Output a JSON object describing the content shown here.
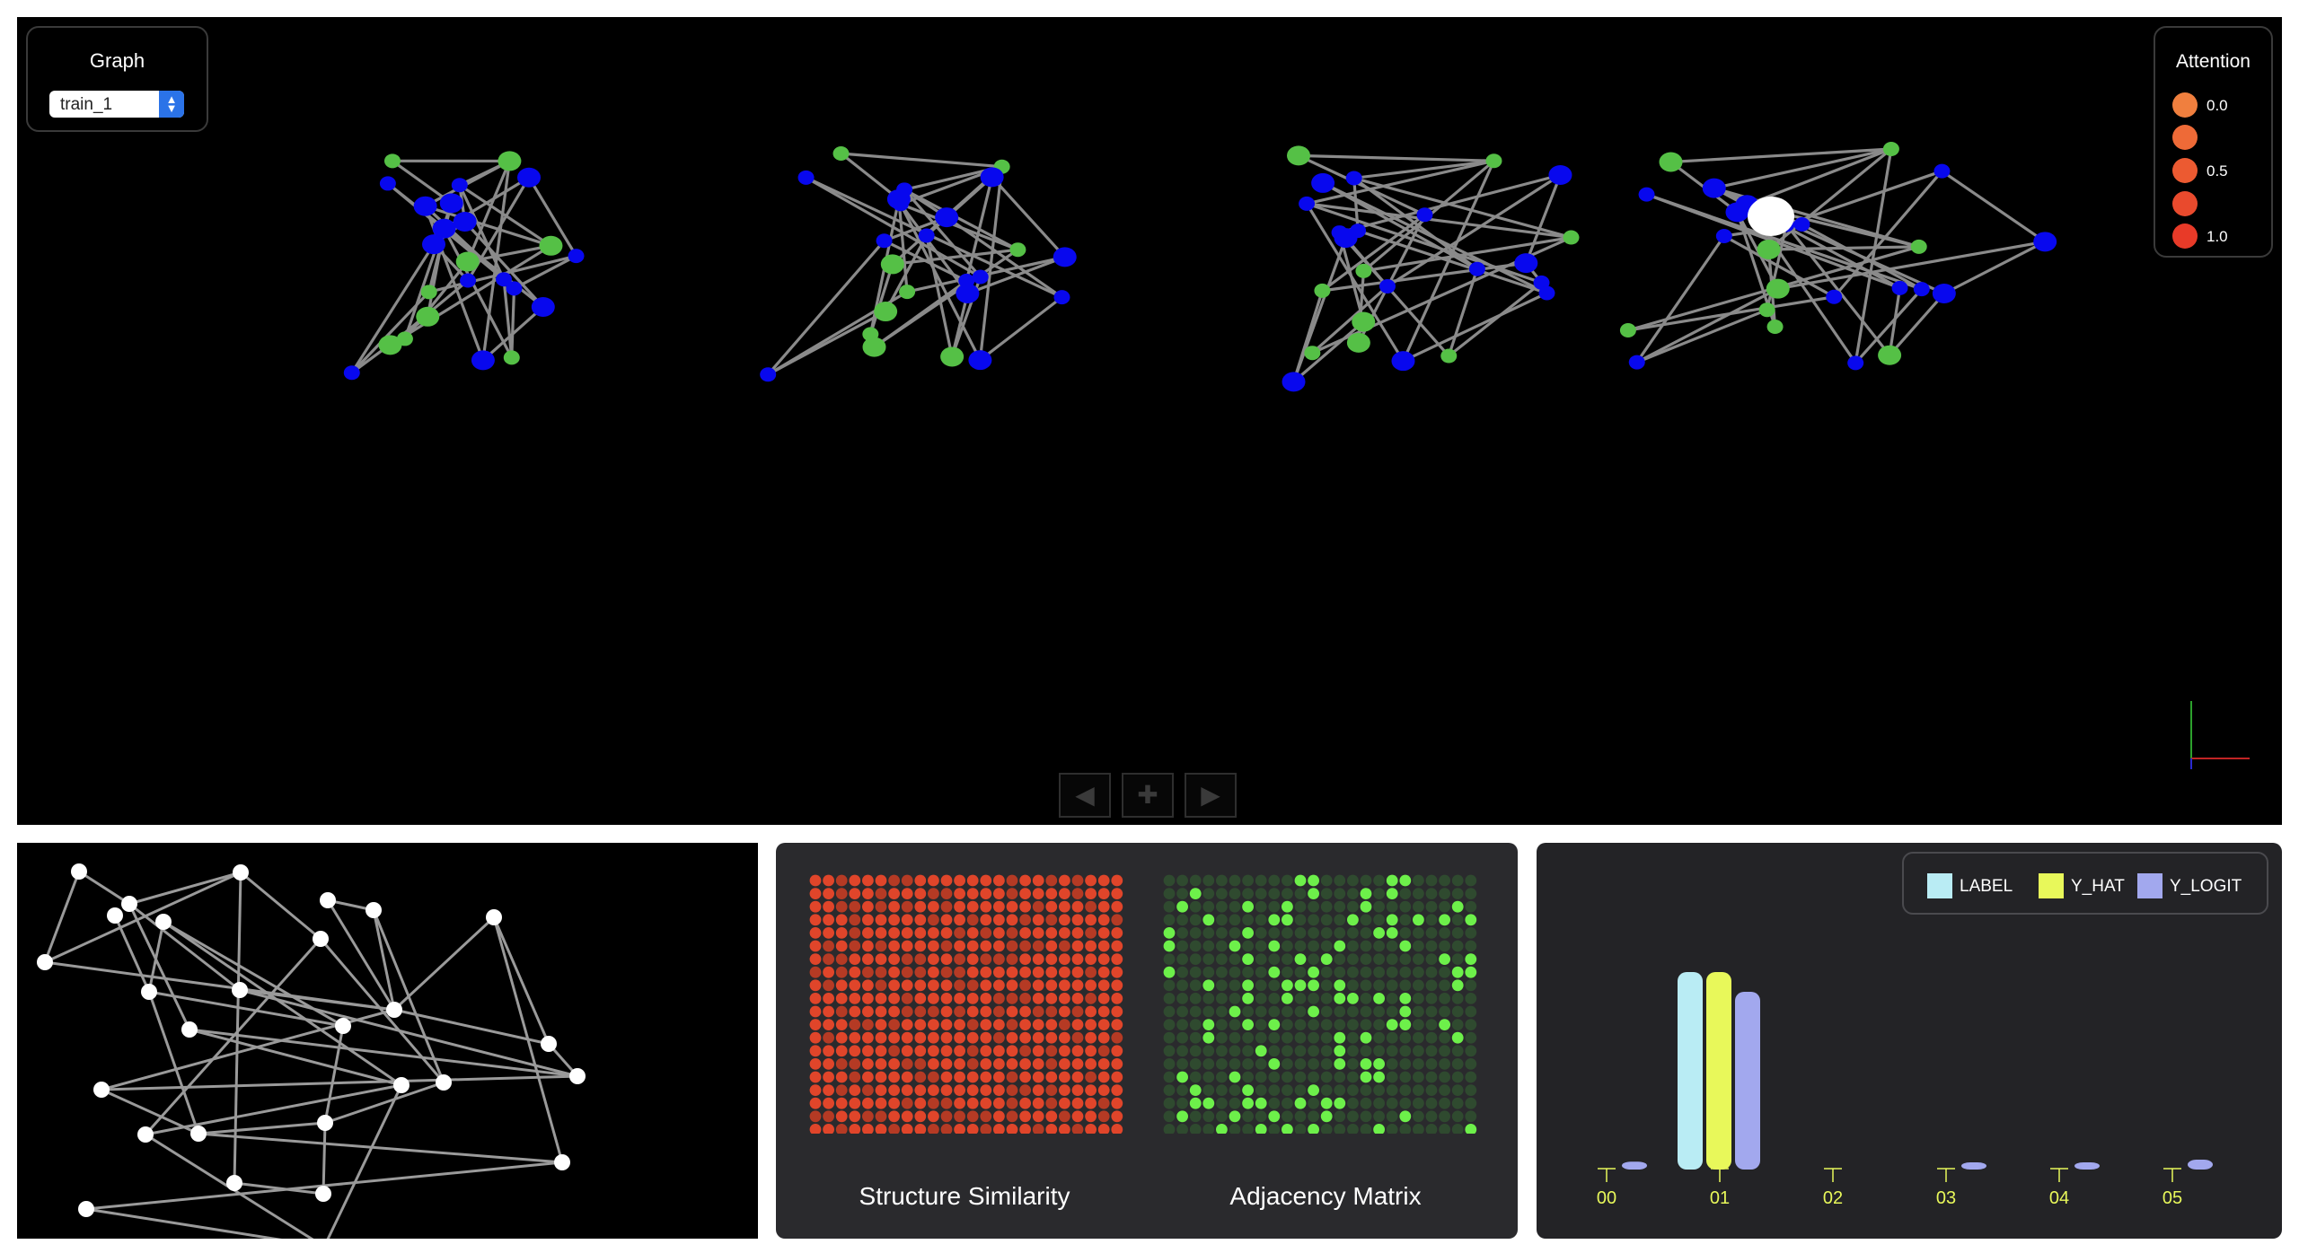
{
  "graph_selector": {
    "title": "Graph",
    "selected": "train_1"
  },
  "attention_legend": {
    "title": "Attention",
    "levels": [
      {
        "label": "0.0",
        "color": "#f07f3e"
      },
      {
        "label": "",
        "color": "#ee6a37"
      },
      {
        "label": "0.5",
        "color": "#ec5a31"
      },
      {
        "label": "",
        "color": "#e94a2d"
      },
      {
        "label": "1.0",
        "color": "#e83a28"
      }
    ]
  },
  "colors": {
    "node_green": "#55c046",
    "node_blue": "#0808ee",
    "edge": "#8a8a8a",
    "similarity_cell": "#e0452a",
    "similarity_cell_dark": "#b53a24",
    "adjacency_on": "#6df04a",
    "adjacency_off": "#2f4a2f",
    "label_bar": "#b9ecf4",
    "yhat_bar": "#e8f85a",
    "ylogit_bar": "#a2a8ee"
  },
  "navigation": {
    "prev_icon": "triangle-left-icon",
    "add_icon": "plus-icon",
    "next_icon": "triangle-right-icon"
  },
  "matrix_panel": {
    "left_caption": "Structure Similarity",
    "right_caption": "Adjacency Matrix"
  },
  "chart_data": {
    "type": "bar",
    "categories": [
      "00",
      "01",
      "02",
      "03",
      "04",
      "05"
    ],
    "series": [
      {
        "name": "LABEL",
        "values": [
          0,
          1,
          0,
          0,
          0,
          0
        ]
      },
      {
        "name": "Y_HAT",
        "values": [
          0,
          1,
          0,
          0,
          0,
          0
        ]
      },
      {
        "name": "Y_LOGIT",
        "values": [
          0.04,
          0.9,
          0.0,
          0.01,
          0.03,
          0.05
        ]
      }
    ],
    "ylim": [
      0,
      1
    ],
    "legend": "top-right"
  }
}
